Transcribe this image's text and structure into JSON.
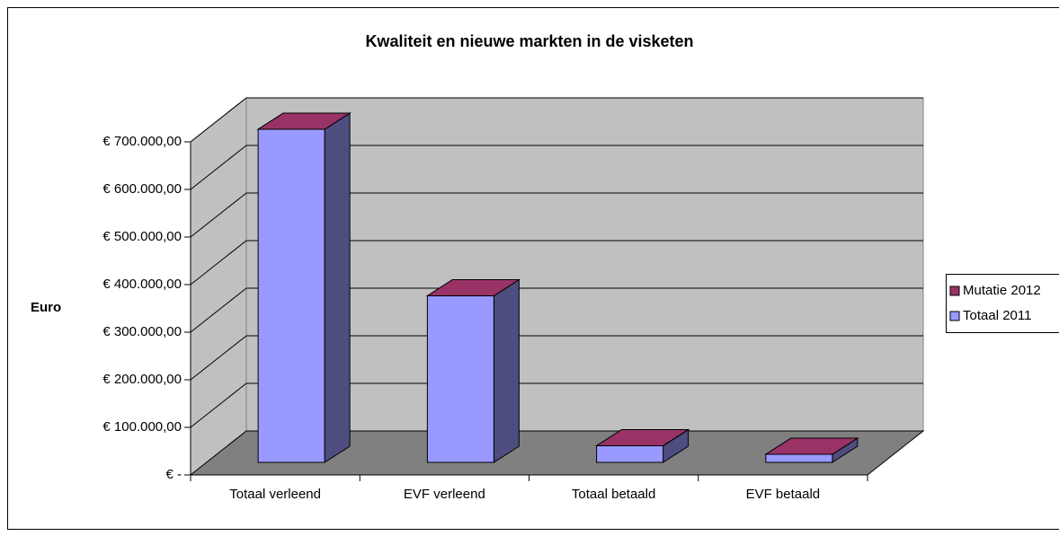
{
  "chart_data": {
    "type": "bar3d_stacked",
    "title": "Kwaliteit en nieuwe markten in de visketen",
    "y_label": "Euro",
    "categories": [
      "Totaal verleend",
      "EVF verleend",
      "Totaal betaald",
      "EVF betaald"
    ],
    "series": [
      {
        "name": "Mutatie 2012",
        "color": "#993366",
        "values": [
          0,
          0,
          0,
          0
        ]
      },
      {
        "name": "Totaal 2011",
        "color": "#9999ff",
        "values": [
          700000,
          350000,
          35000,
          17000
        ]
      }
    ],
    "ylim": [
      0,
      700000
    ],
    "yticks": [
      {
        "value": 0,
        "label": "€ -"
      },
      {
        "value": 100000,
        "label": "€ 100.000,00"
      },
      {
        "value": 200000,
        "label": "€ 200.000,00"
      },
      {
        "value": 300000,
        "label": "€ 300.000,00"
      },
      {
        "value": 400000,
        "label": "€ 400.000,00"
      },
      {
        "value": 500000,
        "label": "€ 500.000,00"
      },
      {
        "value": 600000,
        "label": "€ 600.000,00"
      },
      {
        "value": 700000,
        "label": "€ 700.000,00"
      }
    ],
    "grid": true,
    "legend": "right"
  }
}
